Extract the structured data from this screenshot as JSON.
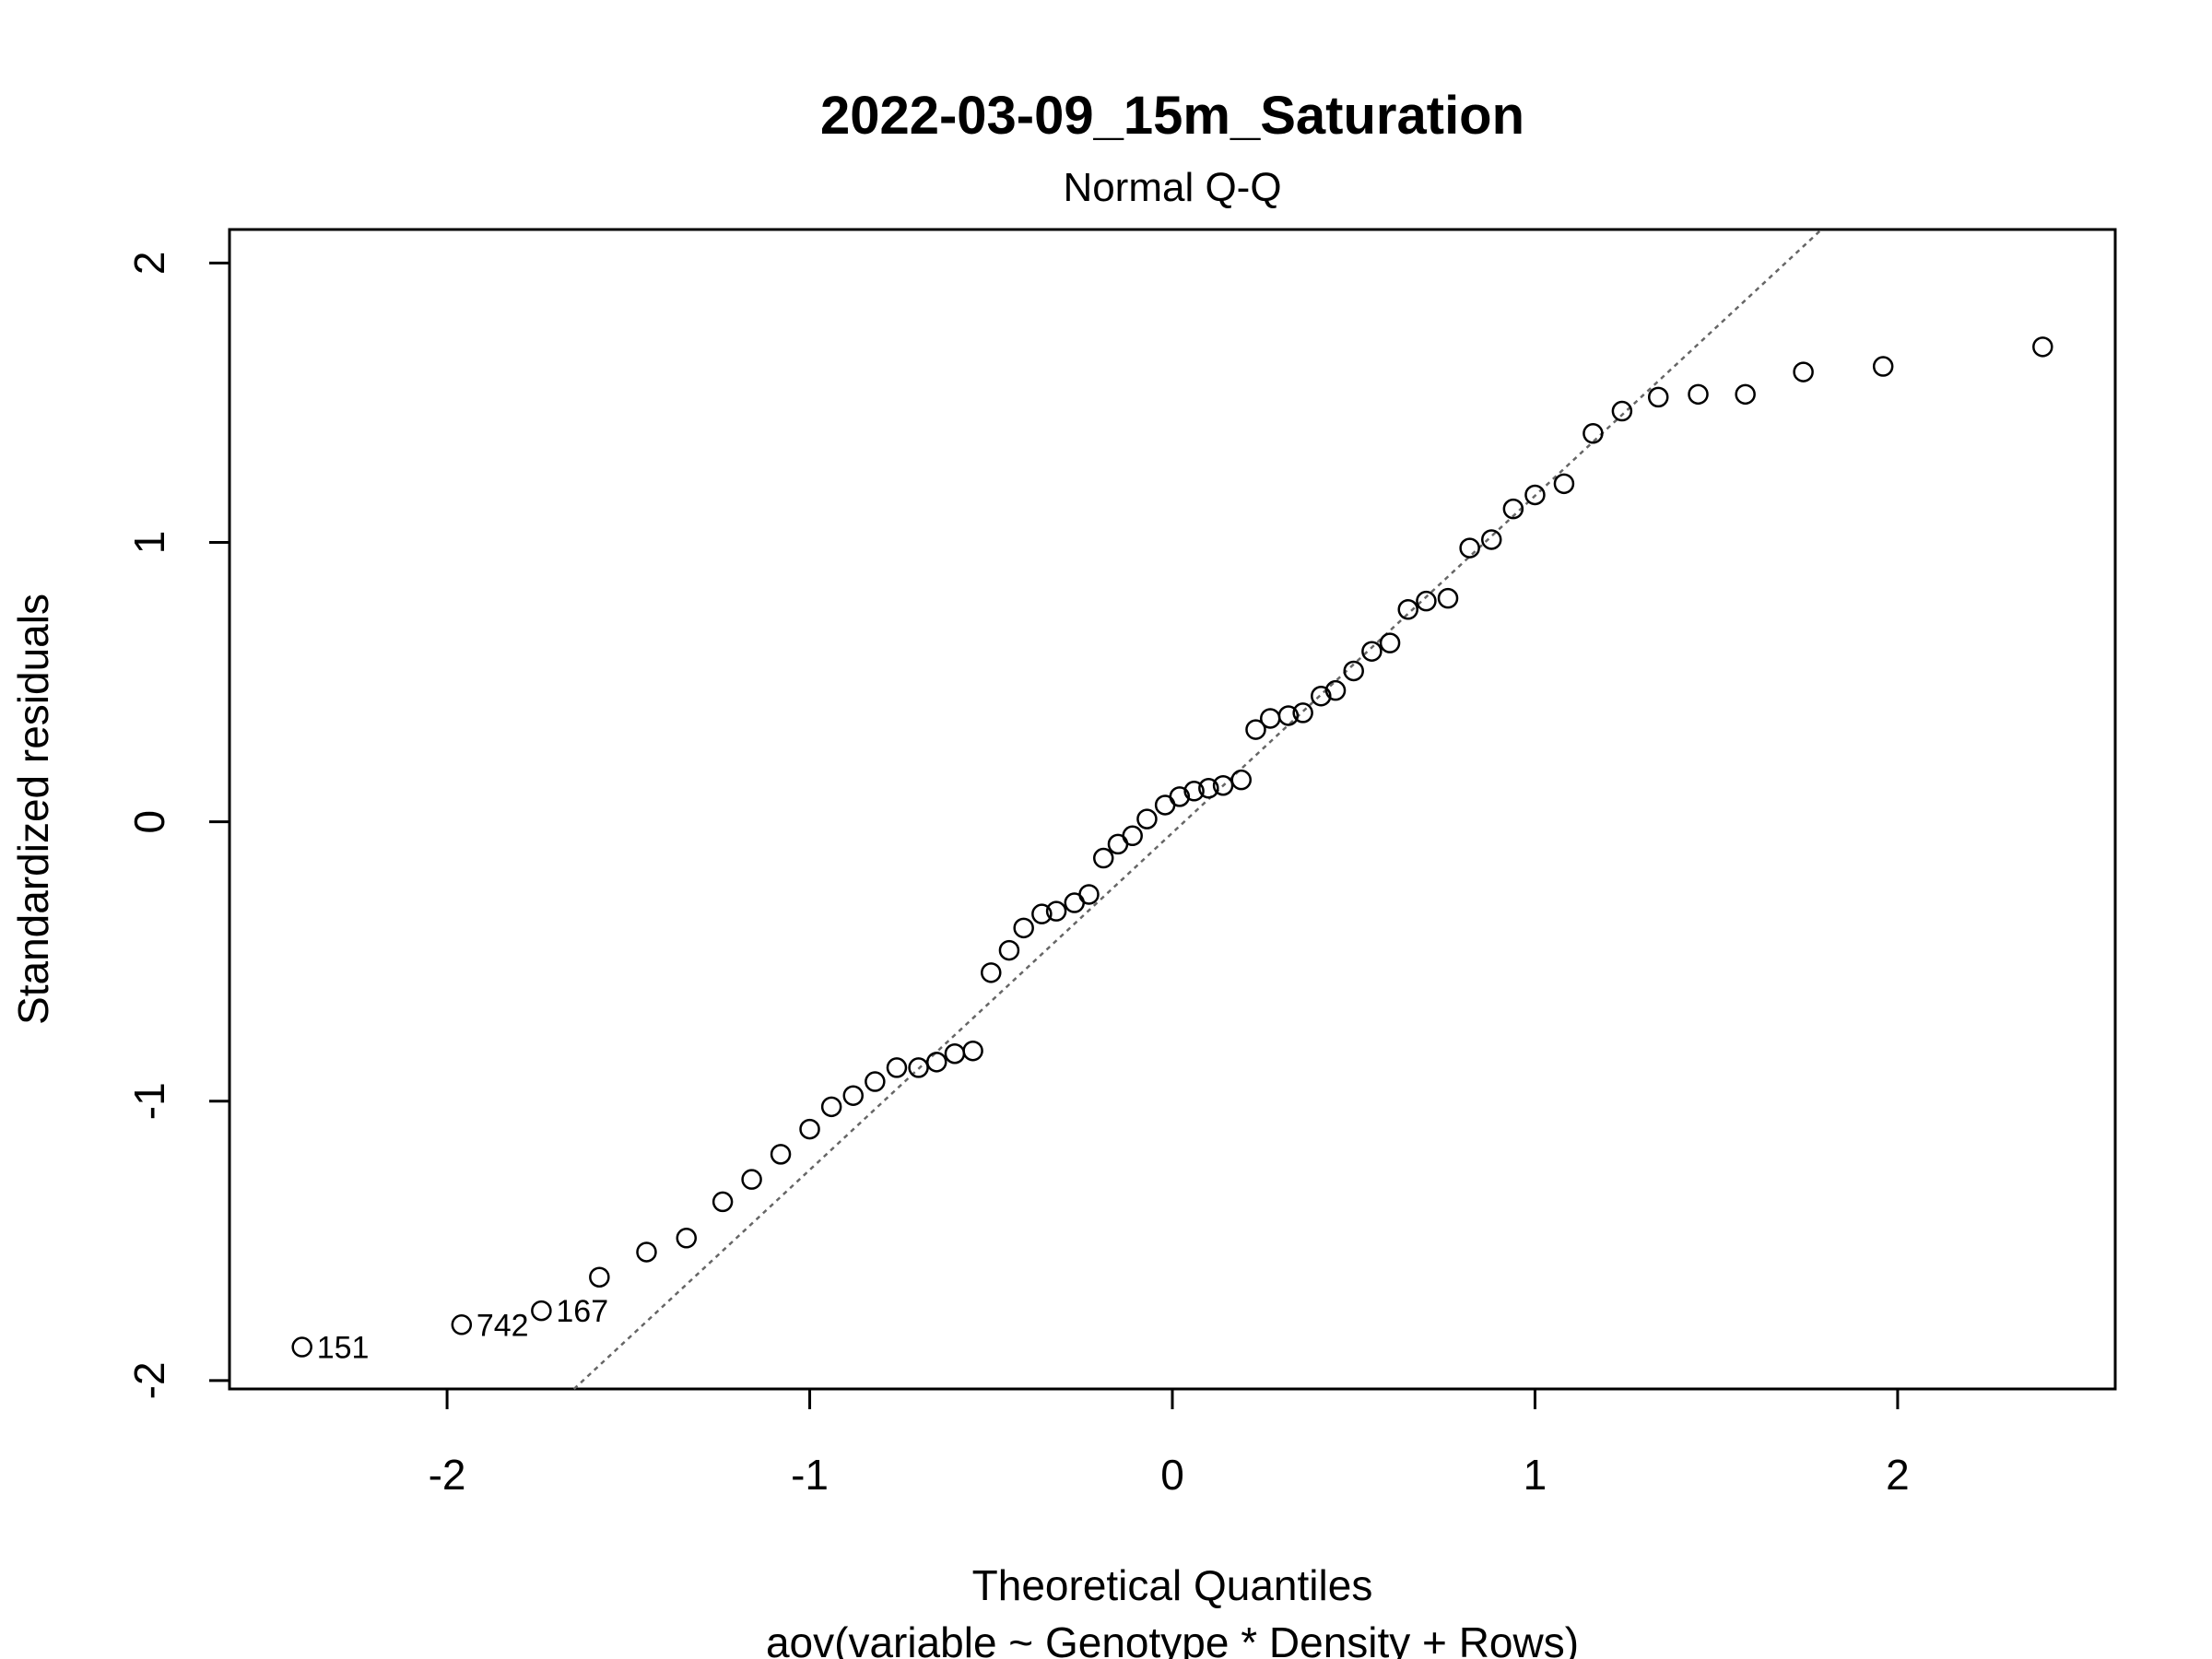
{
  "chart_data": {
    "type": "scatter",
    "title": "2022-03-09_15m_Saturation",
    "subtitle": "Normal Q-Q",
    "xlabel": "Theoretical Quantiles",
    "xlabel2": "aov(variable ~ Genotype * Density + Rows)",
    "ylabel": "Standardized residuals",
    "xlim": [
      -2.6,
      2.6
    ],
    "ylim": [
      -2.03,
      2.12
    ],
    "xticks": [
      -2,
      -1,
      0,
      1,
      2
    ],
    "yticks": [
      -2,
      -1,
      0,
      1,
      2
    ],
    "grid": false,
    "reference_line": {
      "style": "dotted",
      "color": "#666666",
      "through": [
        [
          -1.65,
          -2.03
        ],
        [
          1.79,
          2.12
        ]
      ]
    },
    "points": [
      {
        "x": -2.4,
        "y": -1.88,
        "label": "151"
      },
      {
        "x": -1.96,
        "y": -1.8,
        "label": "742"
      },
      {
        "x": -1.74,
        "y": -1.75,
        "label": "167"
      },
      {
        "x": -1.58,
        "y": -1.63
      },
      {
        "x": -1.45,
        "y": -1.54
      },
      {
        "x": -1.34,
        "y": -1.49
      },
      {
        "x": -1.24,
        "y": -1.36
      },
      {
        "x": -1.16,
        "y": -1.28
      },
      {
        "x": -1.08,
        "y": -1.19
      },
      {
        "x": -1.0,
        "y": -1.1
      },
      {
        "x": -0.94,
        "y": -1.02
      },
      {
        "x": -0.88,
        "y": -0.98
      },
      {
        "x": -0.82,
        "y": -0.93
      },
      {
        "x": -0.76,
        "y": -0.88
      },
      {
        "x": -0.7,
        "y": -0.88
      },
      {
        "x": -0.65,
        "y": -0.86
      },
      {
        "x": -0.6,
        "y": -0.83
      },
      {
        "x": -0.55,
        "y": -0.82
      },
      {
        "x": -0.5,
        "y": -0.54
      },
      {
        "x": -0.45,
        "y": -0.46
      },
      {
        "x": -0.41,
        "y": -0.38
      },
      {
        "x": -0.36,
        "y": -0.33
      },
      {
        "x": -0.32,
        "y": -0.32
      },
      {
        "x": -0.27,
        "y": -0.29
      },
      {
        "x": -0.23,
        "y": -0.26
      },
      {
        "x": -0.19,
        "y": -0.13
      },
      {
        "x": -0.15,
        "y": -0.08
      },
      {
        "x": -0.11,
        "y": -0.05
      },
      {
        "x": -0.07,
        "y": 0.01
      },
      {
        "x": -0.02,
        "y": 0.06
      },
      {
        "x": 0.02,
        "y": 0.09
      },
      {
        "x": 0.06,
        "y": 0.11
      },
      {
        "x": 0.1,
        "y": 0.12
      },
      {
        "x": 0.14,
        "y": 0.13
      },
      {
        "x": 0.19,
        "y": 0.15
      },
      {
        "x": 0.23,
        "y": 0.33
      },
      {
        "x": 0.27,
        "y": 0.37
      },
      {
        "x": 0.32,
        "y": 0.38
      },
      {
        "x": 0.36,
        "y": 0.39
      },
      {
        "x": 0.41,
        "y": 0.45
      },
      {
        "x": 0.45,
        "y": 0.47
      },
      {
        "x": 0.5,
        "y": 0.54
      },
      {
        "x": 0.55,
        "y": 0.61
      },
      {
        "x": 0.6,
        "y": 0.64
      },
      {
        "x": 0.65,
        "y": 0.76
      },
      {
        "x": 0.7,
        "y": 0.79
      },
      {
        "x": 0.76,
        "y": 0.8
      },
      {
        "x": 0.82,
        "y": 0.98
      },
      {
        "x": 0.88,
        "y": 1.01
      },
      {
        "x": 0.94,
        "y": 1.12
      },
      {
        "x": 1.0,
        "y": 1.17
      },
      {
        "x": 1.08,
        "y": 1.21
      },
      {
        "x": 1.16,
        "y": 1.39
      },
      {
        "x": 1.24,
        "y": 1.47
      },
      {
        "x": 1.34,
        "y": 1.52
      },
      {
        "x": 1.45,
        "y": 1.53
      },
      {
        "x": 1.58,
        "y": 1.53
      },
      {
        "x": 1.74,
        "y": 1.61
      },
      {
        "x": 1.96,
        "y": 1.63
      },
      {
        "x": 2.4,
        "y": 1.7
      }
    ]
  }
}
